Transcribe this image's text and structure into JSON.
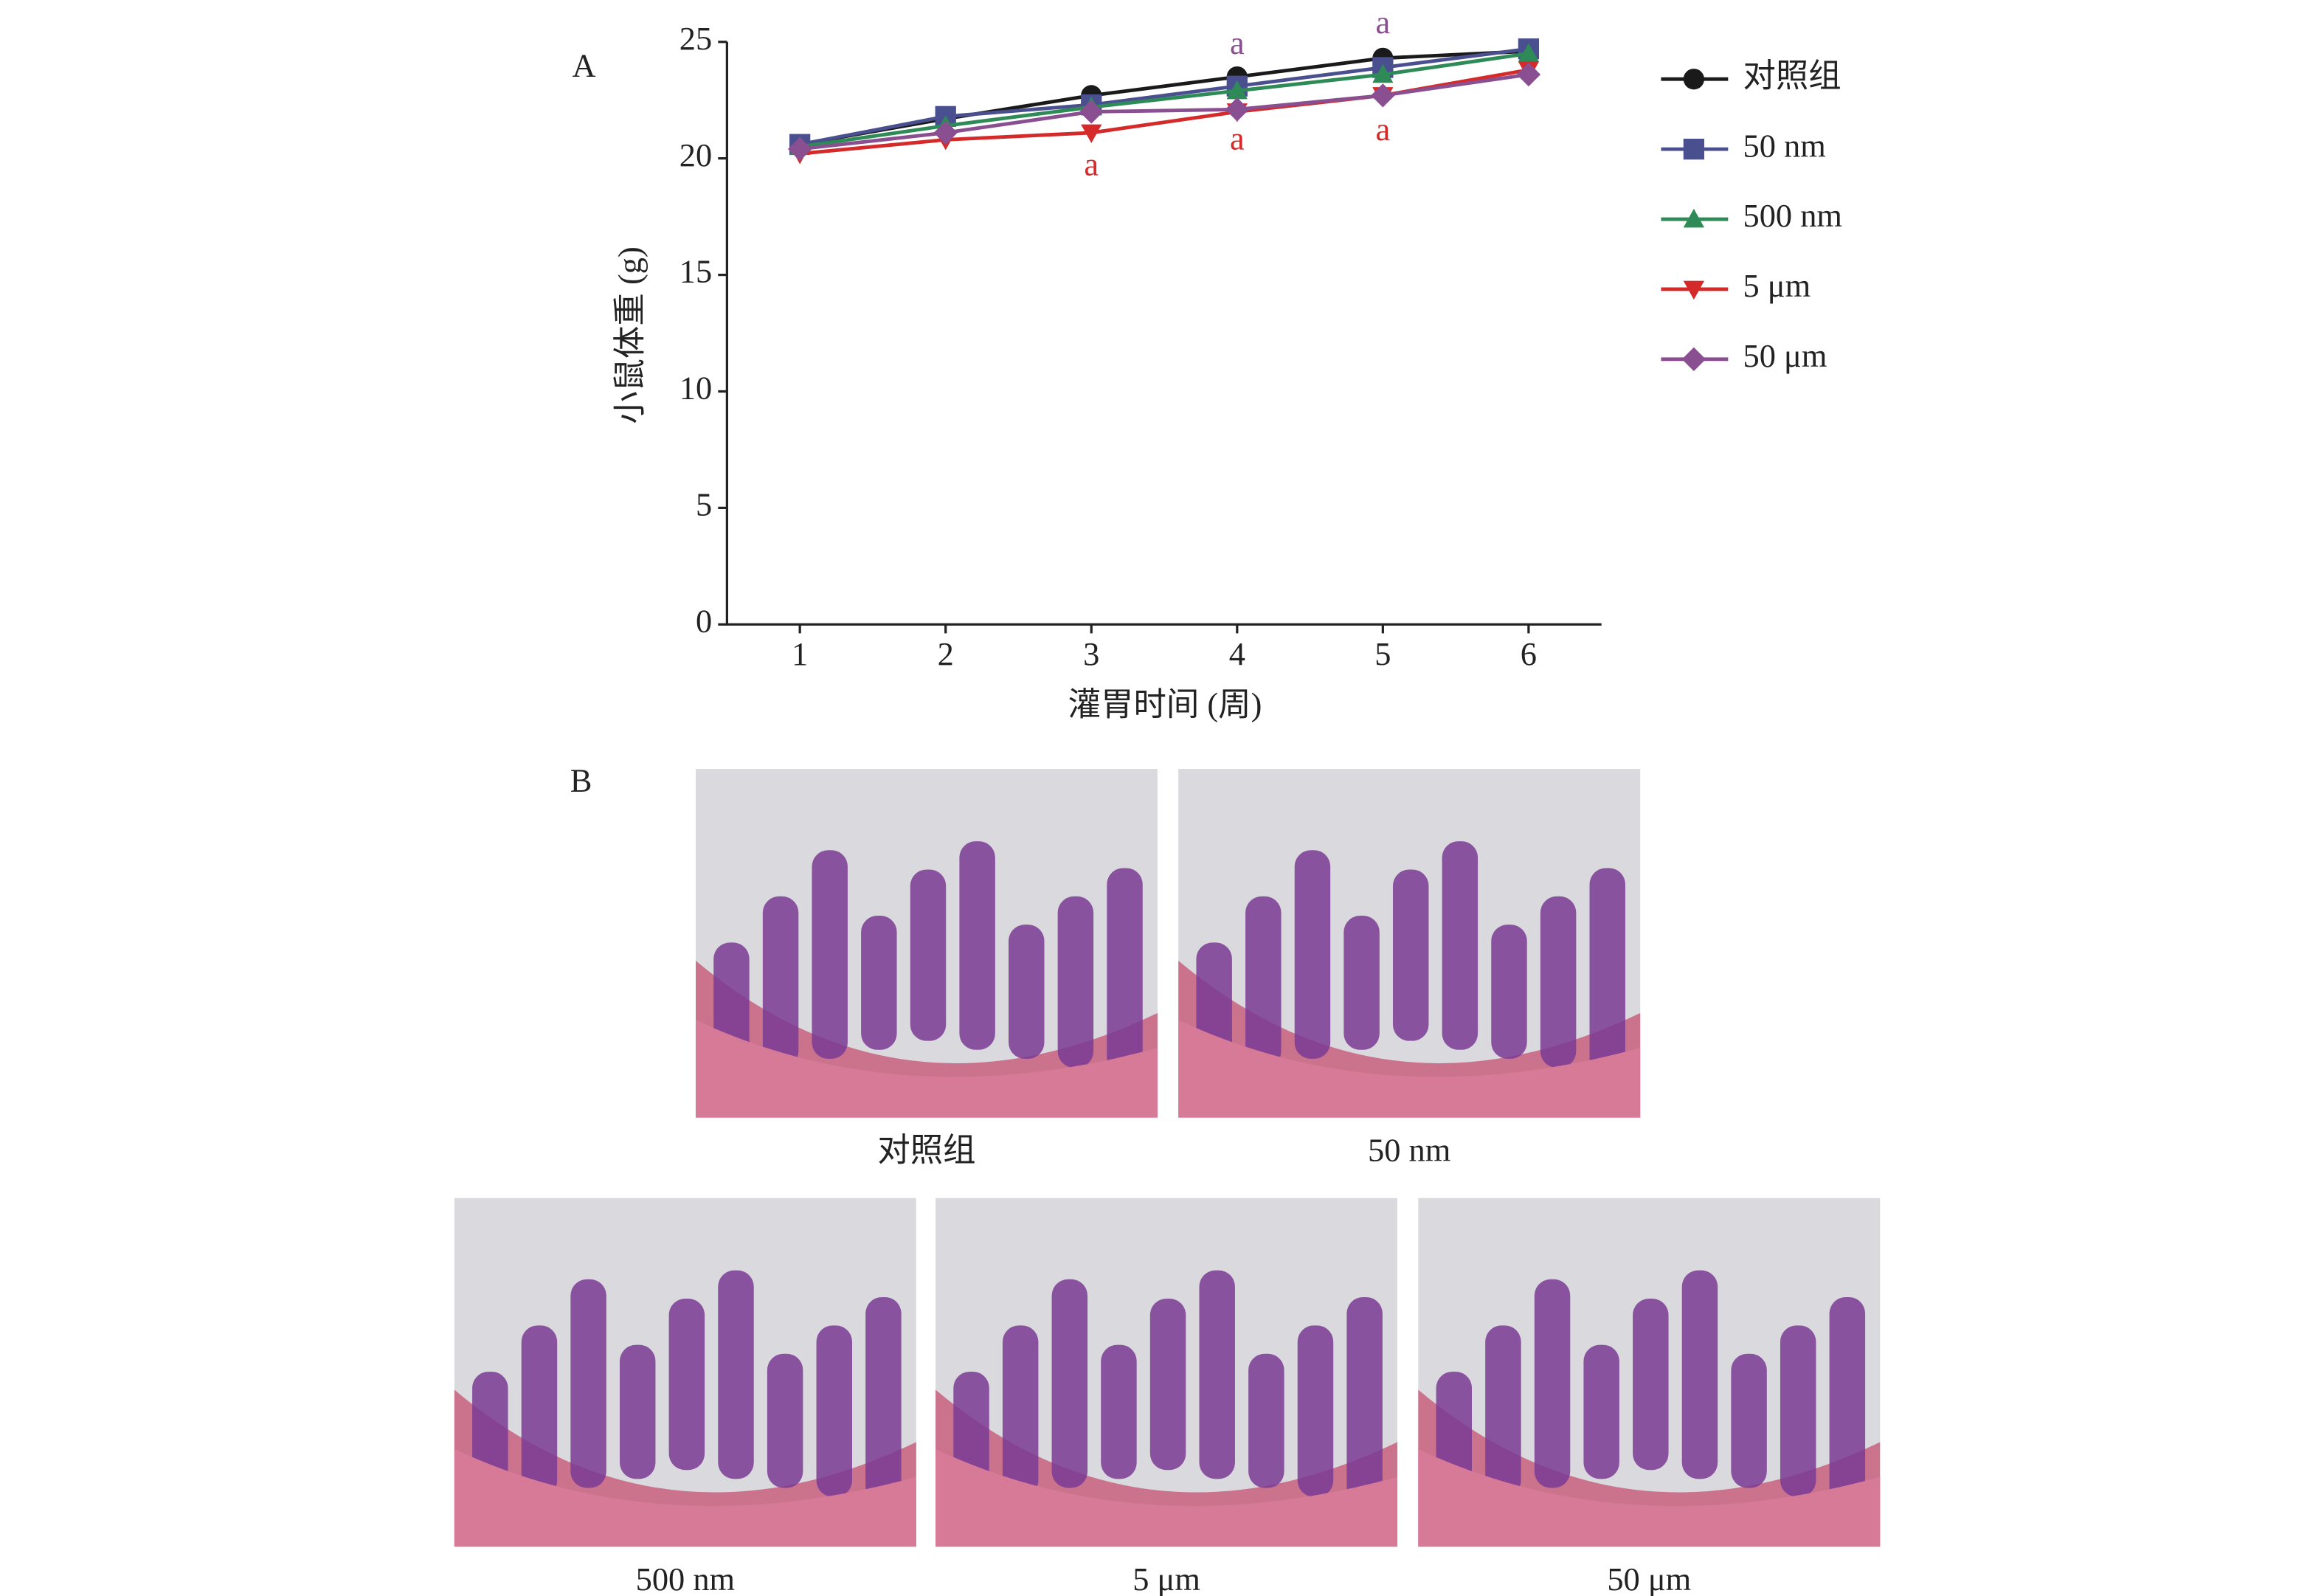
{
  "chart_data": {
    "type": "line",
    "panel_label": "A",
    "xlabel": "灌胃时间 (周)",
    "ylabel": "小鼠体重 (g)",
    "x": [
      1,
      2,
      3,
      4,
      5,
      6
    ],
    "xlim": [
      0.5,
      6.5
    ],
    "xticks": [
      1,
      2,
      3,
      4,
      5,
      6
    ],
    "ylim": [
      0,
      25
    ],
    "yticks": [
      0,
      5,
      10,
      15,
      20,
      25
    ],
    "grid": false,
    "legend": "right",
    "series": [
      {
        "name": "对照组",
        "color": "#1a1a1a",
        "marker": "circle",
        "values": [
          20.6,
          21.7,
          22.7,
          23.5,
          24.3,
          24.6
        ]
      },
      {
        "name": "50 nm",
        "color": "#4a4f8f",
        "marker": "square",
        "values": [
          20.6,
          21.8,
          22.3,
          23.1,
          23.9,
          24.7
        ]
      },
      {
        "name": "500 nm",
        "color": "#2e8b57",
        "marker": "triangle-up",
        "values": [
          20.5,
          21.4,
          22.2,
          22.9,
          23.6,
          24.5
        ]
      },
      {
        "name": "5 μm",
        "color": "#d42a2a",
        "marker": "triangle-down",
        "values": [
          20.2,
          20.8,
          21.1,
          22.0,
          22.7,
          23.8
        ]
      },
      {
        "name": "50 μm",
        "color": "#8a4f91",
        "marker": "diamond",
        "values": [
          20.4,
          21.1,
          22.0,
          22.1,
          22.7,
          23.6
        ]
      }
    ],
    "annotations": [
      {
        "text": "a",
        "x": 3,
        "y": 19.6,
        "color": "#d42a2a"
      },
      {
        "text": "a",
        "x": 4,
        "y": 20.7,
        "color": "#d42a2a"
      },
      {
        "text": "a",
        "x": 5,
        "y": 21.1,
        "color": "#d42a2a"
      },
      {
        "text": "a",
        "x": 4,
        "y": 24.8,
        "color": "#8a4f91"
      },
      {
        "text": "a",
        "x": 5,
        "y": 25.7,
        "color": "#8a4f91"
      }
    ]
  },
  "figure_b": {
    "panel_label": "B",
    "captions": [
      "对照组",
      "50 nm",
      "500 nm",
      "5 μm",
      "50 μm"
    ]
  }
}
